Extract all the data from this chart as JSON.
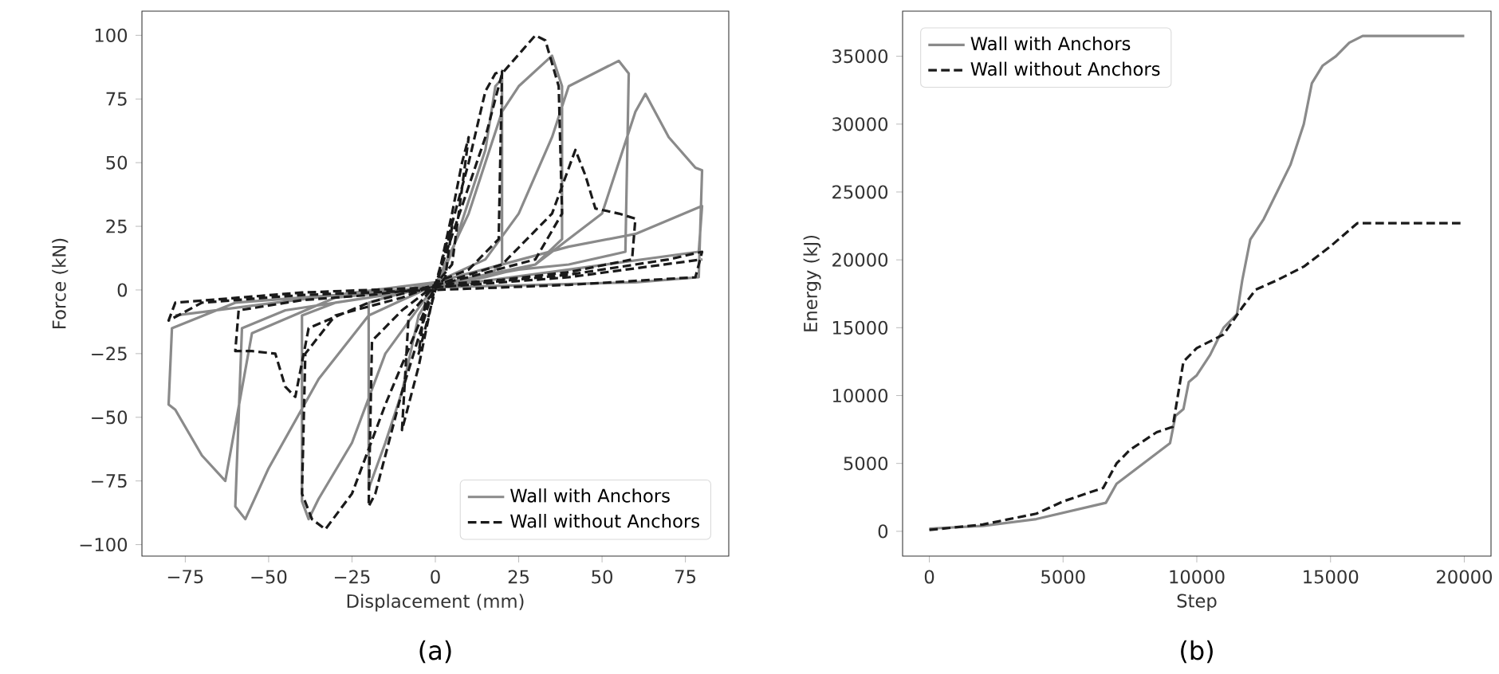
{
  "chart_data": [
    {
      "type": "line",
      "xlabel": "Displacement (mm)",
      "ylabel": "Force (kN)",
      "annotations": [
        "(a)"
      ],
      "xlim": [
        -88,
        88
      ],
      "ylim": [
        -104.5,
        109.5
      ],
      "xticks": [
        {
          "value": -75,
          "label": "−75"
        },
        {
          "value": -50,
          "label": "−50"
        },
        {
          "value": -25,
          "label": "−25"
        },
        0,
        25,
        50,
        75
      ],
      "yticks": [
        {
          "value": -100,
          "label": "−100"
        },
        {
          "value": -75,
          "label": "−75"
        },
        {
          "value": -50,
          "label": "−50"
        },
        {
          "value": -25,
          "label": "−25"
        },
        0,
        25,
        50,
        75,
        100
      ],
      "grid": false,
      "legend": "bottom right",
      "marker": "none",
      "series": [
        {
          "name": "Wall with Anchors",
          "color": "#8a8a8a",
          "line_style": "solid",
          "x": [
            0,
            5,
            10,
            15,
            18,
            20,
            20,
            15,
            0,
            -5,
            -10,
            -15,
            -20,
            -20,
            -15,
            0,
            10,
            20,
            25,
            35,
            38,
            38,
            30,
            15,
            0,
            -15,
            -25,
            -35,
            -38,
            -40,
            -40,
            -30,
            -15,
            0,
            15,
            25,
            35,
            40,
            55,
            58,
            57,
            40,
            25,
            0,
            -20,
            -35,
            -50,
            -57,
            -60,
            -58,
            -45,
            -20,
            0,
            30,
            50,
            60,
            63,
            70,
            78,
            80,
            79,
            60,
            30,
            0,
            -30,
            -55,
            -63,
            -70,
            -78,
            -80,
            -79,
            -60,
            -30,
            0,
            40,
            79,
            80,
            60,
            40,
            20,
            0,
            -30,
            -78
          ],
          "values": [
            0,
            15,
            35,
            55,
            80,
            83,
            10,
            5,
            1,
            -10,
            -40,
            -60,
            -78,
            -5,
            -3,
            2,
            30,
            70,
            80,
            92,
            80,
            20,
            10,
            5,
            2,
            -25,
            -60,
            -82,
            -90,
            -83,
            -10,
            -5,
            -2,
            3,
            12,
            30,
            60,
            80,
            90,
            85,
            15,
            10,
            8,
            2,
            -10,
            -35,
            -70,
            -90,
            -85,
            -15,
            -8,
            -3,
            2,
            10,
            30,
            70,
            77,
            60,
            48,
            47,
            5,
            3,
            2,
            1,
            -3,
            -17,
            -75,
            -65,
            -47,
            -45,
            -15,
            -5,
            -2,
            1,
            8,
            15,
            33,
            22,
            17,
            10,
            3,
            -2,
            -10
          ]
        },
        {
          "name": "Wall without Anchors",
          "color": "#1a1a1a",
          "line_style": "dashed",
          "x": [
            0,
            3,
            5,
            3,
            0,
            -3,
            -5,
            -3,
            0,
            5,
            8,
            10,
            5,
            0,
            -5,
            -10,
            -8,
            0,
            10,
            15,
            18,
            20,
            19,
            10,
            0,
            -10,
            -18,
            -20,
            -19,
            -10,
            0,
            15,
            20,
            30,
            33,
            37,
            38,
            30,
            10,
            0,
            -15,
            -25,
            -33,
            -37,
            -40,
            -39,
            -30,
            -10,
            0,
            20,
            35,
            42,
            45,
            48,
            55,
            60,
            59,
            40,
            20,
            0,
            -20,
            -38,
            -42,
            -45,
            -48,
            -55,
            -60,
            -59,
            -40,
            -20,
            0,
            40,
            70,
            80,
            78,
            40,
            0,
            -40,
            -70,
            -80,
            -78,
            -40,
            0,
            40,
            80
          ],
          "values": [
            0,
            15,
            25,
            5,
            0,
            -15,
            -25,
            -5,
            0,
            30,
            50,
            60,
            10,
            2,
            -30,
            -55,
            -10,
            2,
            50,
            78,
            85,
            86,
            20,
            8,
            3,
            -40,
            -80,
            -85,
            -20,
            -8,
            2,
            60,
            85,
            100,
            98,
            80,
            30,
            12,
            5,
            2,
            -45,
            -80,
            -94,
            -90,
            -80,
            -25,
            -10,
            -3,
            2,
            10,
            30,
            55,
            45,
            32,
            30,
            28,
            12,
            7,
            4,
            2,
            -5,
            -15,
            -42,
            -38,
            -25,
            -24,
            -24,
            -8,
            -4,
            -2,
            1,
            6,
            12,
            15,
            5,
            2,
            0,
            -2,
            -5,
            -12,
            -5,
            -1,
            1,
            5,
            12
          ]
        }
      ]
    },
    {
      "type": "line",
      "xlabel": "Step",
      "ylabel": "Energy (kJ)",
      "annotations": [
        "(b)"
      ],
      "xlim": [
        -1000,
        21000
      ],
      "ylim": [
        -1825,
        38325
      ],
      "xticks": [
        0,
        5000,
        10000,
        15000,
        20000
      ],
      "yticks": [
        0,
        5000,
        10000,
        15000,
        20000,
        25000,
        30000,
        35000
      ],
      "grid": false,
      "legend": "top left",
      "marker": "none",
      "series": [
        {
          "name": "Wall with Anchors",
          "color": "#8a8a8a",
          "line_style": "solid",
          "x": [
            0,
            2000,
            4000,
            6600,
            7000,
            8000,
            9000,
            9200,
            9500,
            9700,
            10000,
            10500,
            11000,
            11500,
            11700,
            12000,
            12500,
            13000,
            13500,
            14000,
            14300,
            14700,
            15200,
            15700,
            16200,
            20000
          ],
          "values": [
            200,
            400,
            900,
            2100,
            3500,
            5000,
            6500,
            8500,
            9000,
            11000,
            11500,
            13000,
            15000,
            16000,
            18500,
            21500,
            23000,
            25000,
            27000,
            30000,
            33000,
            34300,
            35000,
            36000,
            36500,
            36500
          ]
        },
        {
          "name": "Wall without Anchors",
          "color": "#1a1a1a",
          "line_style": "dashed",
          "x": [
            0,
            2000,
            4000,
            5000,
            6500,
            7000,
            7500,
            8500,
            9100,
            9500,
            10000,
            11000,
            11700,
            12200,
            13000,
            14000,
            15000,
            16000,
            20000
          ],
          "values": [
            100,
            500,
            1300,
            2200,
            3200,
            5000,
            6000,
            7300,
            7700,
            12500,
            13500,
            14500,
            16500,
            17800,
            18500,
            19500,
            21000,
            22700,
            22700
          ]
        }
      ]
    }
  ]
}
